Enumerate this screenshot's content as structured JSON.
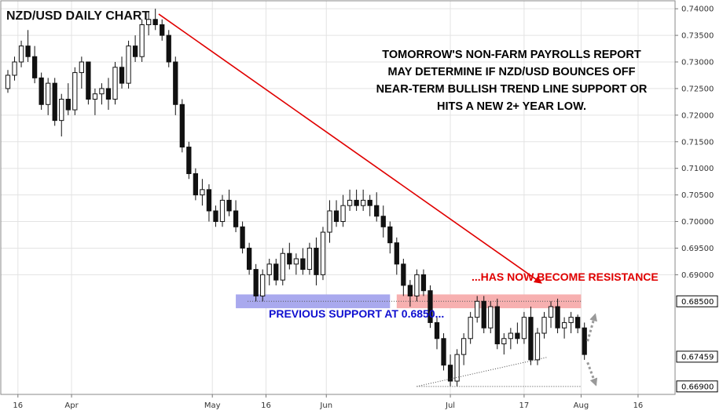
{
  "chart_data": {
    "type": "candlestick",
    "title": "NZD/USD DAILY CHART",
    "y_axis": {
      "range": [
        0.6675,
        0.7415
      ],
      "ticks": [
        "0.74000",
        "0.73500",
        "0.73000",
        "0.72500",
        "0.72000",
        "0.71500",
        "0.71000",
        "0.70500",
        "0.70000",
        "0.69500",
        "0.69000"
      ],
      "tick_values": [
        0.74,
        0.735,
        0.73,
        0.725,
        0.72,
        0.715,
        0.71,
        0.705,
        0.7,
        0.695,
        0.69
      ],
      "position": "right"
    },
    "x_axis": {
      "labels": [
        "16",
        "Apr",
        "May",
        "16",
        "Jun",
        "Jul",
        "17",
        "Aug",
        "16"
      ],
      "label_positions": [
        1.5,
        9.5,
        30.5,
        38.5,
        47.5,
        66,
        77,
        85.5,
        94
      ],
      "range": [
        0,
        96
      ]
    },
    "candles": [
      [
        0.725,
        0.7285,
        0.7242,
        0.7275
      ],
      [
        0.7275,
        0.731,
        0.7265,
        0.73
      ],
      [
        0.73,
        0.734,
        0.729,
        0.733
      ],
      [
        0.733,
        0.736,
        0.73,
        0.731
      ],
      [
        0.731,
        0.733,
        0.726,
        0.727
      ],
      [
        0.727,
        0.728,
        0.721,
        0.722
      ],
      [
        0.722,
        0.727,
        0.72,
        0.726
      ],
      [
        0.726,
        0.727,
        0.718,
        0.719
      ],
      [
        0.719,
        0.724,
        0.716,
        0.723
      ],
      [
        0.723,
        0.726,
        0.72,
        0.721
      ],
      [
        0.721,
        0.729,
        0.72,
        0.728
      ],
      [
        0.728,
        0.731,
        0.725,
        0.73
      ],
      [
        0.73,
        0.73,
        0.722,
        0.723
      ],
      [
        0.723,
        0.725,
        0.72,
        0.724
      ],
      [
        0.724,
        0.726,
        0.722,
        0.725
      ],
      [
        0.725,
        0.727,
        0.721,
        0.723
      ],
      [
        0.723,
        0.73,
        0.722,
        0.729
      ],
      [
        0.729,
        0.731,
        0.725,
        0.726
      ],
      [
        0.726,
        0.734,
        0.725,
        0.733
      ],
      [
        0.733,
        0.735,
        0.73,
        0.731
      ],
      [
        0.731,
        0.738,
        0.73,
        0.737
      ],
      [
        0.737,
        0.7395,
        0.735,
        0.738
      ],
      [
        0.738,
        0.74,
        0.736,
        0.737
      ],
      [
        0.737,
        0.738,
        0.734,
        0.735
      ],
      [
        0.735,
        0.736,
        0.729,
        0.73
      ],
      [
        0.73,
        0.731,
        0.72,
        0.722
      ],
      [
        0.722,
        0.723,
        0.713,
        0.714
      ],
      [
        0.714,
        0.715,
        0.708,
        0.709
      ],
      [
        0.709,
        0.71,
        0.704,
        0.705
      ],
      [
        0.705,
        0.708,
        0.703,
        0.706
      ],
      [
        0.706,
        0.707,
        0.7,
        0.702
      ],
      [
        0.702,
        0.703,
        0.699,
        0.7
      ],
      [
        0.7,
        0.705,
        0.699,
        0.704
      ],
      [
        0.704,
        0.706,
        0.701,
        0.702
      ],
      [
        0.702,
        0.704,
        0.698,
        0.699
      ],
      [
        0.699,
        0.7,
        0.694,
        0.695
      ],
      [
        0.695,
        0.696,
        0.69,
        0.691
      ],
      [
        0.691,
        0.692,
        0.685,
        0.686
      ],
      [
        0.686,
        0.691,
        0.685,
        0.69
      ],
      [
        0.69,
        0.693,
        0.688,
        0.692
      ],
      [
        0.692,
        0.693,
        0.688,
        0.689
      ],
      [
        0.689,
        0.695,
        0.688,
        0.694
      ],
      [
        0.694,
        0.696,
        0.691,
        0.692
      ],
      [
        0.692,
        0.694,
        0.69,
        0.693
      ],
      [
        0.693,
        0.695,
        0.69,
        0.691
      ],
      [
        0.691,
        0.696,
        0.69,
        0.695
      ],
      [
        0.695,
        0.697,
        0.688,
        0.69
      ],
      [
        0.69,
        0.699,
        0.689,
        0.698
      ],
      [
        0.698,
        0.704,
        0.696,
        0.702
      ],
      [
        0.702,
        0.704,
        0.699,
        0.7
      ],
      [
        0.7,
        0.705,
        0.699,
        0.703
      ],
      [
        0.703,
        0.706,
        0.702,
        0.704
      ],
      [
        0.704,
        0.706,
        0.702,
        0.703
      ],
      [
        0.703,
        0.706,
        0.702,
        0.704
      ],
      [
        0.704,
        0.705,
        0.701,
        0.703
      ],
      [
        0.703,
        0.7055,
        0.7,
        0.701
      ],
      [
        0.701,
        0.703,
        0.697,
        0.699
      ],
      [
        0.699,
        0.7,
        0.694,
        0.696
      ],
      [
        0.696,
        0.697,
        0.69,
        0.692
      ],
      [
        0.692,
        0.693,
        0.686,
        0.688
      ],
      [
        0.688,
        0.689,
        0.684,
        0.686
      ],
      [
        0.686,
        0.691,
        0.685,
        0.69
      ],
      [
        0.69,
        0.691,
        0.686,
        0.687
      ],
      [
        0.687,
        0.688,
        0.68,
        0.681
      ],
      [
        0.681,
        0.682,
        0.676,
        0.678
      ],
      [
        0.678,
        0.679,
        0.672,
        0.673
      ],
      [
        0.673,
        0.675,
        0.669,
        0.67
      ],
      [
        0.67,
        0.676,
        0.669,
        0.675
      ],
      [
        0.675,
        0.679,
        0.673,
        0.678
      ],
      [
        0.678,
        0.683,
        0.677,
        0.682
      ],
      [
        0.682,
        0.686,
        0.681,
        0.685
      ],
      [
        0.685,
        0.686,
        0.679,
        0.68
      ],
      [
        0.68,
        0.685,
        0.679,
        0.684
      ],
      [
        0.684,
        0.6855,
        0.676,
        0.677
      ],
      [
        0.677,
        0.679,
        0.675,
        0.678
      ],
      [
        0.678,
        0.68,
        0.676,
        0.679
      ],
      [
        0.679,
        0.681,
        0.677,
        0.678
      ],
      [
        0.678,
        0.683,
        0.677,
        0.682
      ],
      [
        0.682,
        0.684,
        0.673,
        0.674
      ],
      [
        0.674,
        0.68,
        0.673,
        0.679
      ],
      [
        0.679,
        0.683,
        0.678,
        0.682
      ],
      [
        0.682,
        0.685,
        0.68,
        0.684
      ],
      [
        0.684,
        0.6855,
        0.679,
        0.68
      ],
      [
        0.68,
        0.682,
        0.678,
        0.681
      ],
      [
        0.681,
        0.683,
        0.679,
        0.682
      ],
      [
        0.682,
        0.6825,
        0.679,
        0.68
      ],
      [
        0.68,
        0.681,
        0.674,
        0.675
      ]
    ],
    "y_tags": [
      {
        "label": "0.68500",
        "value": 0.685,
        "style": "boxed"
      },
      {
        "label": "0.67459",
        "value": 0.67459,
        "style": "boxed"
      },
      {
        "label": "0.66900",
        "value": 0.669,
        "style": "boxed"
      }
    ],
    "annotations": {
      "note_lines": [
        "TOMORROW'S NON-FARM PAYROLLS REPORT",
        "MAY DETERMINE IF NZD/USD BOUNCES OFF",
        "NEAR-TERM BULLISH TREND LINE SUPPORT OR",
        "HITS A NEW 2+ YEAR LOW."
      ],
      "support_label": "PREVIOUS SUPPORT AT 0.6850...",
      "resistance_label": "...HAS NOW BECOME RESISTANCE",
      "support_zone": {
        "from_index": 34,
        "to_index": 57,
        "low": 0.6837,
        "high": 0.6863
      },
      "resistance_zone": {
        "from_index": 58,
        "to_index": 85.5,
        "low": 0.6837,
        "high": 0.6863
      },
      "downtrend_arrow": {
        "from": [
          22.5,
          0.739
        ],
        "to": [
          79.5,
          0.6885
        ]
      },
      "trend_line": {
        "from": [
          61,
          0.669
        ],
        "to": [
          80.5,
          0.6745
        ]
      },
      "low_line": {
        "from": [
          61,
          0.669
        ],
        "to": [
          85.5,
          0.669
        ]
      }
    },
    "colors": {
      "candle_body_down": "#111111",
      "candle_body_up": "#ffffff",
      "candle_outline": "#111111",
      "arrow": "#e00000",
      "support_zone": "#a9a9ee",
      "resistance_zone": "#f7b0b0",
      "support_label": "#1010d0",
      "resistance_label": "#e00000",
      "projection_arrows": "#999999"
    }
  }
}
